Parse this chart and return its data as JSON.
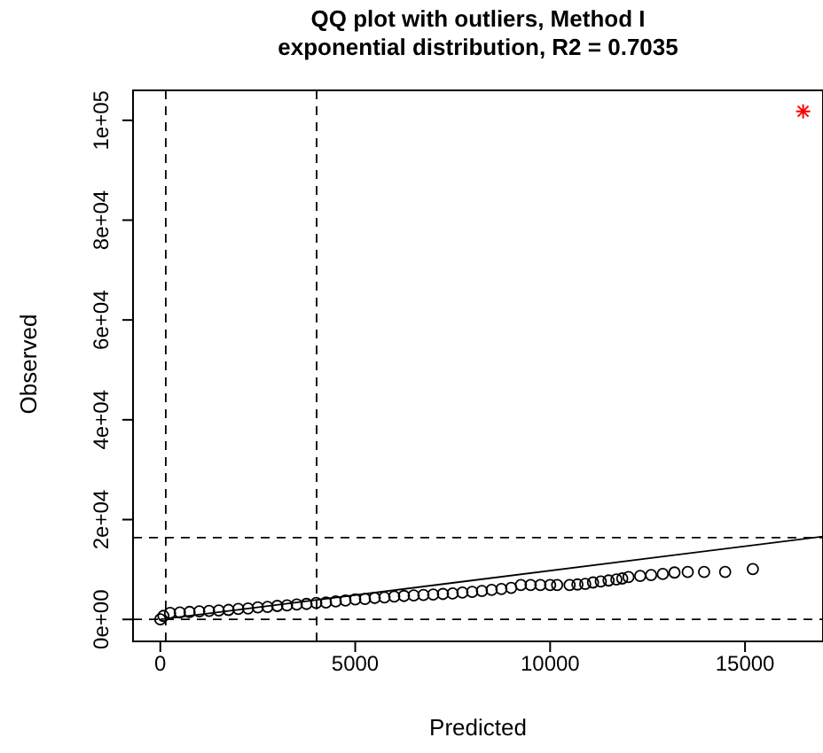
{
  "chart_data": {
    "type": "scatter",
    "title": "QQ plot with outliers, Method I",
    "subtitle": "exponential distribution, R2 = 0.7035",
    "xlabel": "Predicted",
    "ylabel": "Observed",
    "xlim": [
      -700,
      17000
    ],
    "ylim": [
      -4400,
      106000
    ],
    "xticks": [
      0,
      5000,
      10000,
      15000
    ],
    "yticks": [
      {
        "value": 0,
        "label": "0e+00"
      },
      {
        "value": 20000,
        "label": "2e+04"
      },
      {
        "value": 40000,
        "label": "4e+04"
      },
      {
        "value": 60000,
        "label": "6e+04"
      },
      {
        "value": 80000,
        "label": "8e+04"
      },
      {
        "value": 100000,
        "label": "1e+05"
      }
    ],
    "series": [
      {
        "color": "#000000",
        "marker": "circle",
        "x": [
          0,
          80,
          250,
          500,
          750,
          1000,
          1250,
          1500,
          1750,
          2000,
          2250,
          2500,
          2750,
          3000,
          3250,
          3500,
          3750,
          4000,
          4250,
          4500,
          4750,
          5000,
          5250,
          5500,
          5750,
          6000,
          6250,
          6500,
          6750,
          7000,
          7250,
          7500,
          7750,
          8000,
          8250,
          8500,
          8750,
          9000,
          9250,
          9500,
          9750,
          10000,
          10180,
          10500,
          10700,
          10900,
          11100,
          11300,
          11500,
          11700,
          11850,
          12010,
          12310,
          12590,
          12890,
          13190,
          13530,
          13950,
          14490,
          15200
        ],
        "values": [
          0,
          700,
          1300,
          1400,
          1500,
          1600,
          1700,
          1800,
          1900,
          2100,
          2200,
          2400,
          2500,
          2700,
          2800,
          3000,
          3100,
          3300,
          3400,
          3600,
          3800,
          4000,
          4100,
          4300,
          4400,
          4600,
          4700,
          4800,
          4900,
          5000,
          5100,
          5200,
          5400,
          5500,
          5700,
          5900,
          6100,
          6300,
          6900,
          6900,
          6900,
          6900,
          6900,
          6900,
          7000,
          7100,
          7400,
          7600,
          7800,
          8000,
          8200,
          8500,
          8700,
          8900,
          9100,
          9400,
          9500,
          9500,
          9500,
          10100
        ]
      },
      {
        "type": "scatter",
        "color": "#ff0000",
        "marker": "cross",
        "x": [
          16490
        ],
        "values": [
          101800
        ]
      },
      {
        "type": "line",
        "color": "#000000",
        "marker": "none",
        "line_style": "solid",
        "x": [
          0,
          17000
        ],
        "values": [
          0,
          16600
        ]
      }
    ],
    "ref_lines": [
      {
        "axis": "x",
        "value": 140,
        "line_style": "dashed",
        "color": "#000000"
      },
      {
        "axis": "x",
        "value": 4010,
        "line_style": "dashed",
        "color": "#000000"
      },
      {
        "axis": "y",
        "value": 16400,
        "line_style": "dashed",
        "color": "#000000"
      },
      {
        "axis": "y",
        "value": 0,
        "line_style": "dashed",
        "color": "#000000"
      }
    ]
  }
}
